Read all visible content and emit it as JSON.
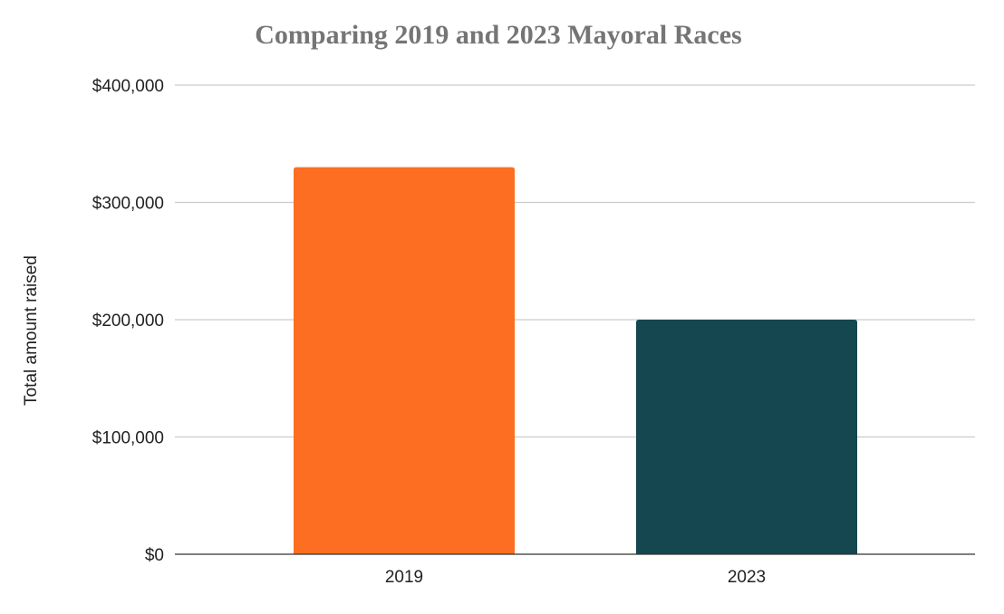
{
  "chart_data": {
    "type": "bar",
    "title": "Comparing 2019 and 2023 Mayoral Races",
    "xlabel": "",
    "ylabel": "Total amount raised",
    "categories": [
      "2019",
      "2023"
    ],
    "values": [
      330000,
      200000
    ],
    "colors": [
      "#fd6e22",
      "#154751"
    ],
    "ylim": [
      0,
      400000
    ],
    "yticks": [
      0,
      100000,
      200000,
      300000,
      400000
    ],
    "ytick_labels": [
      "$0",
      "$100,000",
      "$200,000",
      "$300,000",
      "$400,000"
    ],
    "grid": true,
    "legend": "none"
  }
}
